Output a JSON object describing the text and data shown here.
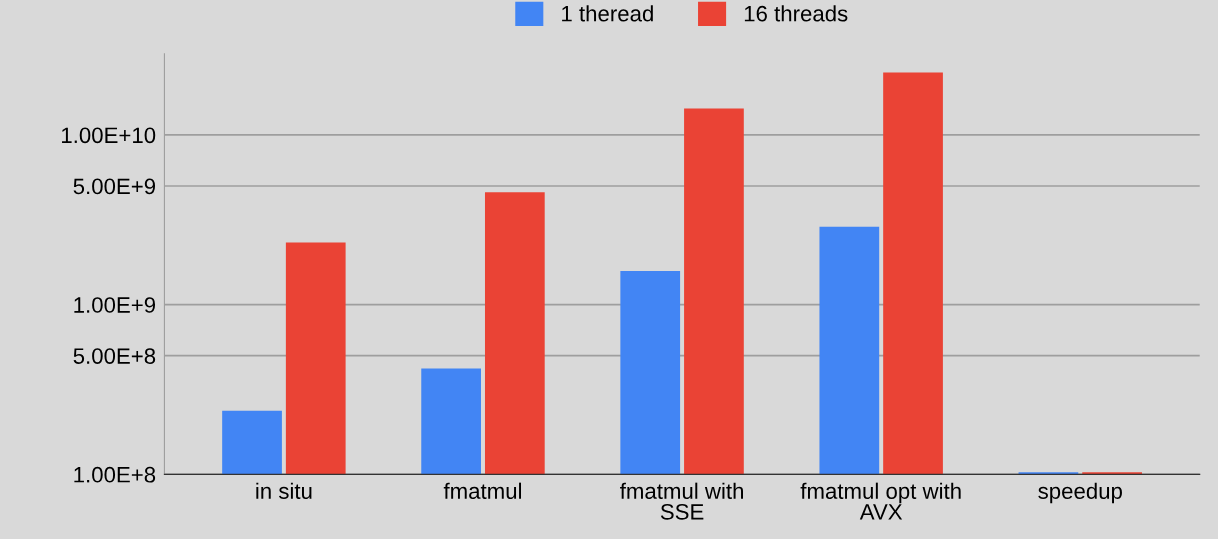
{
  "chart_data": {
    "type": "bar",
    "categories": [
      "in situ",
      "fmatmul",
      "fmatmul with\nSSE",
      "fmatmul opt with\nAVX",
      "speedup"
    ],
    "series": [
      {
        "name": "1 theread",
        "color": "#4285f4",
        "values": [
          237000000.0,
          420000000.0,
          1580000000.0,
          2880000000.0,
          103000000.0
        ]
      },
      {
        "name": "16 threads",
        "color": "#ea4335",
        "values": [
          2320000000.0,
          4590000000.0,
          14300000000.0,
          23300000000.0,
          103000000.0
        ]
      }
    ],
    "log": "y",
    "ylim": [
      100000000.0,
      30000000000.0
    ],
    "yticks": [
      {
        "value": 100000000.0,
        "label": "1.00E+8"
      },
      {
        "value": 500000000.0,
        "label": "5.00E+8"
      },
      {
        "value": 1000000000.0,
        "label": "1.00E+9"
      },
      {
        "value": 5000000000.0,
        "label": "5.00E+9"
      },
      {
        "value": 10000000000.0,
        "label": "1.00E+10"
      }
    ],
    "grid": "y",
    "legend": "top"
  }
}
